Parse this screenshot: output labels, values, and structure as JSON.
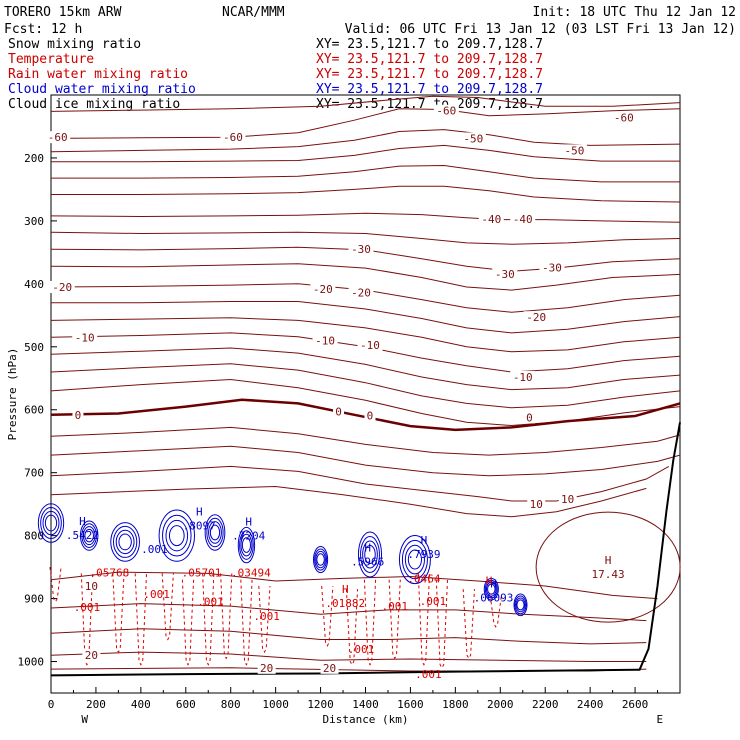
{
  "header": {
    "model": "TORERO  15km ARW",
    "org": "NCAR/MMM",
    "init": "Init: 18 UTC Thu 12 Jan 12",
    "fcst": "Fcst:   12 h",
    "valid": "Valid: 06 UTC Fri 13 Jan 12 (03 LST Fri 13 Jan 12)"
  },
  "legend": [
    {
      "name": "Snow mixing ratio",
      "xy": "XY=  23.5,121.7 to 209.7,128.7",
      "color": "#000000"
    },
    {
      "name": "Temperature",
      "xy": "XY=  23.5,121.7 to 209.7,128.7",
      "color": "#cc0000"
    },
    {
      "name": "Rain water mixing ratio",
      "xy": "XY=  23.5,121.7 to 209.7,128.7",
      "color": "#cc0000"
    },
    {
      "name": "Cloud water mixing ratio",
      "xy": "XY=  23.5,121.7 to 209.7,128.7",
      "color": "#0000cc"
    },
    {
      "name": "Cloud ice mixing ratio",
      "xy": "XY=  23.5,121.7 to 209.7,128.7",
      "color": "#000000"
    }
  ],
  "chart_data": {
    "type": "contour-cross-section",
    "xlabel": "Distance (km)",
    "ylabel": "Pressure (hPa)",
    "xlim": [
      0,
      2800
    ],
    "ylim": [
      1050,
      100
    ],
    "x_ticks": [
      0,
      200,
      400,
      600,
      800,
      1000,
      1200,
      1400,
      1600,
      1800,
      2000,
      2200,
      2400,
      2600
    ],
    "y_ticks": [
      200,
      300,
      400,
      500,
      600,
      700,
      800,
      900,
      1000
    ],
    "x_end_labels": {
      "left": "W",
      "right": "E"
    },
    "colors": {
      "temperature": "#7a1010",
      "zero_isotherm": "#6a0000",
      "cloud_water": "#0000cc",
      "rain": "#dd0000",
      "terrain": "#000000"
    },
    "isotherm_labels": [
      {
        "x": 30,
        "p": 167,
        "text": "-60"
      },
      {
        "x": 810,
        "p": 167,
        "text": "-60"
      },
      {
        "x": 1760,
        "p": 125,
        "text": "-60"
      },
      {
        "x": 2550,
        "p": 136,
        "text": "-60"
      },
      {
        "x": 1880,
        "p": 169,
        "text": "-50"
      },
      {
        "x": 2330,
        "p": 188,
        "text": "-50"
      },
      {
        "x": 1960,
        "p": 297,
        "text": "-40"
      },
      {
        "x": 2100,
        "p": 297,
        "text": "-40"
      },
      {
        "x": 1380,
        "p": 345,
        "text": "-30"
      },
      {
        "x": 2020,
        "p": 384,
        "text": "-30"
      },
      {
        "x": 2230,
        "p": 374,
        "text": "-30"
      },
      {
        "x": 50,
        "p": 405,
        "text": "-20"
      },
      {
        "x": 1210,
        "p": 408,
        "text": "-20"
      },
      {
        "x": 1380,
        "p": 414,
        "text": "-20"
      },
      {
        "x": 2160,
        "p": 453,
        "text": "-20"
      },
      {
        "x": 150,
        "p": 485,
        "text": "-10"
      },
      {
        "x": 1220,
        "p": 490,
        "text": "-10"
      },
      {
        "x": 1420,
        "p": 497,
        "text": "-10"
      },
      {
        "x": 2100,
        "p": 548,
        "text": "-10"
      },
      {
        "x": 120,
        "p": 608,
        "text": "0"
      },
      {
        "x": 1280,
        "p": 603,
        "text": "0"
      },
      {
        "x": 1420,
        "p": 609,
        "text": "0"
      },
      {
        "x": 2130,
        "p": 612,
        "text": "0"
      },
      {
        "x": 2160,
        "p": 750,
        "text": "10"
      },
      {
        "x": 2300,
        "p": 742,
        "text": "10"
      },
      {
        "x": 180,
        "p": 880,
        "text": "10"
      },
      {
        "x": 180,
        "p": 990,
        "text": "20"
      },
      {
        "x": 960,
        "p": 1010,
        "text": "20"
      },
      {
        "x": 1240,
        "p": 1010,
        "text": "20"
      }
    ],
    "extrema": [
      {
        "x": 140,
        "p": 796,
        "label": "H",
        "value": ".5422",
        "color": "#0000cc"
      },
      {
        "x": 460,
        "p": 818,
        "label": "",
        "value": ".001",
        "color": "#0000cc"
      },
      {
        "x": 660,
        "p": 781,
        "label": "H",
        "value": ".8097",
        "color": "#0000cc"
      },
      {
        "x": 880,
        "p": 797,
        "label": "H",
        "value": ".7204",
        "color": "#0000cc"
      },
      {
        "x": 1410,
        "p": 838,
        "label": "H",
        "value": ".5966",
        "color": "#0000cc"
      },
      {
        "x": 1660,
        "p": 826,
        "label": "H",
        "value": ".7939",
        "color": "#0000cc"
      },
      {
        "x": 1970,
        "p": 895,
        "label": "H",
        "value": ".06093",
        "color": "#0000cc"
      },
      {
        "x": 260,
        "p": 855,
        "label": "",
        "value": ".05768",
        "color": "#dd0000"
      },
      {
        "x": 670,
        "p": 855,
        "label": "",
        "value": ".05701",
        "color": "#dd0000"
      },
      {
        "x": 890,
        "p": 855,
        "label": "",
        "value": ".03494",
        "color": "#dd0000"
      },
      {
        "x": 1310,
        "p": 904,
        "label": "H",
        "value": ".01882",
        "color": "#dd0000"
      },
      {
        "x": 1660,
        "p": 865,
        "label": "",
        "value": ".0464",
        "color": "#dd0000"
      },
      {
        "x": 1950,
        "p": 890,
        "label": "H",
        "value": "",
        "color": "#dd0000"
      },
      {
        "x": 2480,
        "p": 858,
        "label": "H",
        "value": "17.43",
        "color": "#7a1010"
      }
    ],
    "small_labels": [
      {
        "x": 160,
        "p": 913,
        "text": ".001"
      },
      {
        "x": 470,
        "p": 893,
        "text": ".001"
      },
      {
        "x": 710,
        "p": 905,
        "text": ".001"
      },
      {
        "x": 960,
        "p": 928,
        "text": ".001"
      },
      {
        "x": 1530,
        "p": 912,
        "text": ".001"
      },
      {
        "x": 1380,
        "p": 980,
        "text": ".001"
      },
      {
        "x": 1700,
        "p": 904,
        "text": ".001"
      },
      {
        "x": 1680,
        "p": 1020,
        "text": ".001"
      }
    ]
  }
}
